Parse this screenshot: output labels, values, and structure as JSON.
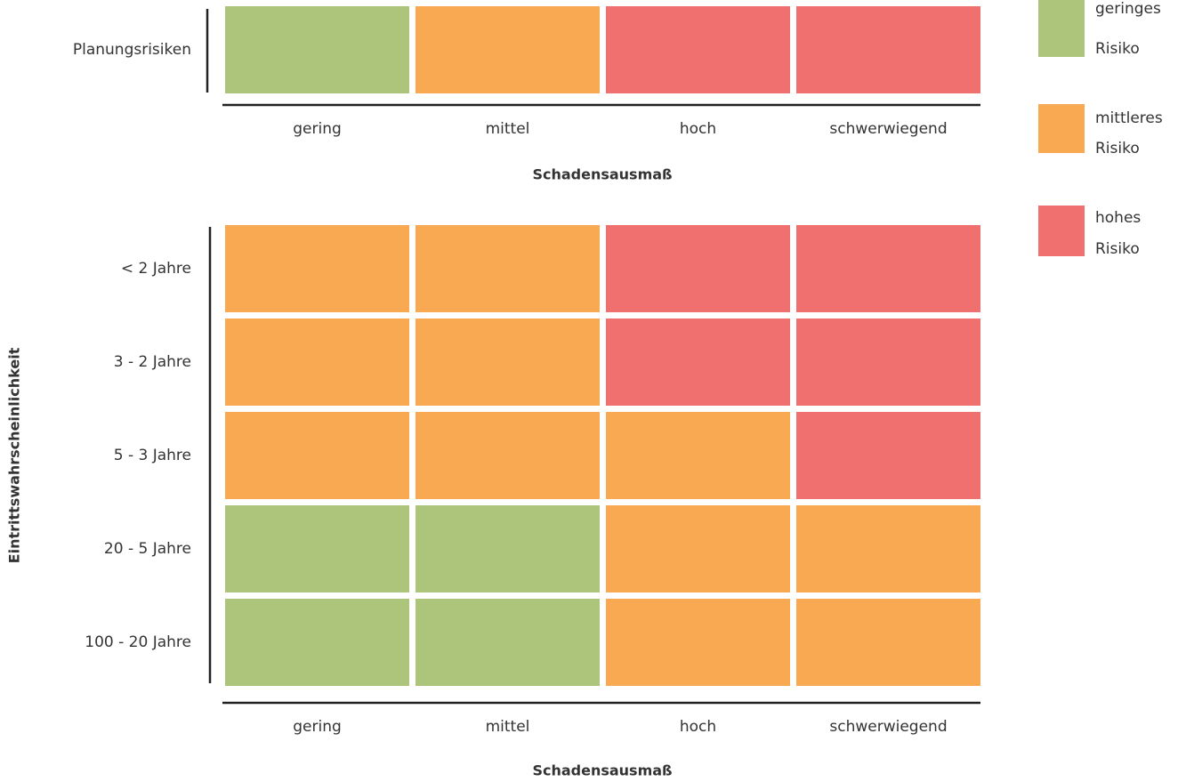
{
  "chart_data": [
    {
      "type": "heatmap",
      "rows": [
        "Planungsrisiken"
      ],
      "columns": [
        "gering",
        "mittel",
        "hoch",
        "schwerwiegend"
      ],
      "xlabel": "Schadensausmaß",
      "cells": [
        [
          "#adc57b",
          "#f9a951",
          "#f06f6f",
          "#f06f6f"
        ]
      ]
    },
    {
      "type": "heatmap",
      "rows": [
        "< 2 Jahre",
        "3 - 2 Jahre",
        "5 - 3 Jahre",
        "20 - 5 Jahre",
        "100 - 20 Jahre"
      ],
      "columns": [
        "gering",
        "mittel",
        "hoch",
        "schwerwiegend"
      ],
      "xlabel": "Schadensausmaß",
      "ylabel": "Eintrittswahrscheinlichkeit",
      "cells": [
        [
          "#f9a951",
          "#f9a951",
          "#f06f6f",
          "#f06f6f"
        ],
        [
          "#f9a951",
          "#f9a951",
          "#f06f6f",
          "#f06f6f"
        ],
        [
          "#f9a951",
          "#f9a951",
          "#f9a951",
          "#f06f6f"
        ],
        [
          "#adc57b",
          "#adc57b",
          "#f9a951",
          "#f9a951"
        ],
        [
          "#adc57b",
          "#adc57b",
          "#f9a951",
          "#f9a951"
        ]
      ]
    }
  ],
  "legend": [
    {
      "lines": [
        "geringes",
        "Risiko"
      ],
      "color": "#adc57b"
    },
    {
      "lines": [
        "mittleres",
        "Risiko"
      ],
      "color": "#f9a951"
    },
    {
      "lines": [
        "hohes",
        "Risiko"
      ],
      "color": "#f06f6f"
    }
  ]
}
